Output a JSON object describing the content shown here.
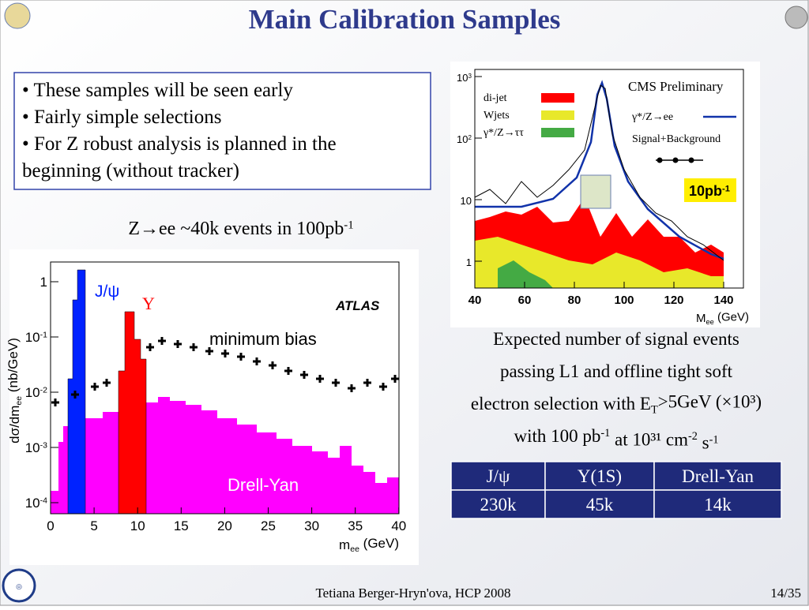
{
  "header": {
    "title": "Main Calibration Samples"
  },
  "bullets": [
    "• These samples will be seen early",
    "• Fairly simple selections",
    "• For Z robust analysis is planned in the",
    "beginning (without tracker)"
  ],
  "caption": [
    {
      "t": "Z→ee ~40k events in 100pb"
    },
    {
      "sup": "-1"
    }
  ],
  "left_plot": {
    "ylabel": [
      {
        "t": "dσ/dm"
      },
      {
        "sub": "ee"
      },
      {
        "t": " (nb/GeV)"
      }
    ],
    "xlabel": [
      {
        "t": "m"
      },
      {
        "sub": "ee"
      },
      {
        "t": " (GeV)"
      }
    ],
    "xticks": [
      "0",
      "5",
      "10",
      "15",
      "20",
      "25",
      "30",
      "35",
      "40"
    ],
    "yticks": [
      [
        {
          "t": "1"
        }
      ],
      [
        {
          "t": "10"
        },
        {
          "sup": "-1"
        }
      ],
      [
        {
          "t": "10"
        },
        {
          "sup": "-2"
        }
      ],
      [
        {
          "t": "10"
        },
        {
          "sup": "-3"
        }
      ],
      [
        {
          "t": "10"
        },
        {
          "sup": "-4"
        }
      ]
    ],
    "labels": {
      "jpsi": "J/ψ",
      "upsilon": "Υ",
      "atlas": "ATLAS",
      "minbias": "minimum bias",
      "dy": "Drell-Yan"
    }
  },
  "right_plot": {
    "xticks": [
      "40",
      "60",
      "80",
      "100",
      "120",
      "140"
    ],
    "yticks": [
      [
        {
          "t": "10"
        },
        {
          "sup": "3"
        }
      ],
      [
        {
          "t": "10"
        },
        {
          "sup": "2"
        }
      ],
      [
        {
          "t": "10"
        }
      ],
      [
        {
          "t": "1"
        }
      ]
    ],
    "xlabel": [
      {
        "t": "M"
      },
      {
        "sub": "ee"
      },
      {
        "t": " (GeV)"
      }
    ],
    "legend": {
      "dijet": "di-jet",
      "wjets": "Wjets",
      "ztautau": "γ*/Z→ττ",
      "cms": "CMS  Preliminary",
      "zee": "γ*/Z→ee",
      "sb": "Signal+Background"
    },
    "lumi": [
      {
        "t": "10pb"
      },
      {
        "sup": "-1"
      }
    ]
  },
  "expected": [
    [
      {
        "t": "Expected number of signal events"
      }
    ],
    [
      {
        "t": "passing L1 and offline tight soft"
      }
    ],
    [
      {
        "t": "electron selection with E"
      },
      {
        "sub": "T"
      },
      {
        "t": ">5GeV (×10³)"
      }
    ],
    [
      {
        "t": "with 100 pb"
      },
      {
        "sup": "-1"
      },
      {
        "t": " at 10³¹ cm"
      },
      {
        "sup": "-2"
      },
      {
        "t": " s"
      },
      {
        "sup": "-1"
      }
    ]
  ],
  "table": {
    "header": [
      "J/ψ",
      "Υ(1S)",
      "Drell-Yan"
    ],
    "rows": [
      [
        "230k",
        "45k",
        "14k"
      ]
    ]
  },
  "footer": {
    "author": "Tetiana Berger-Hryn'ova, HCP 2008",
    "page": "14/35"
  }
}
